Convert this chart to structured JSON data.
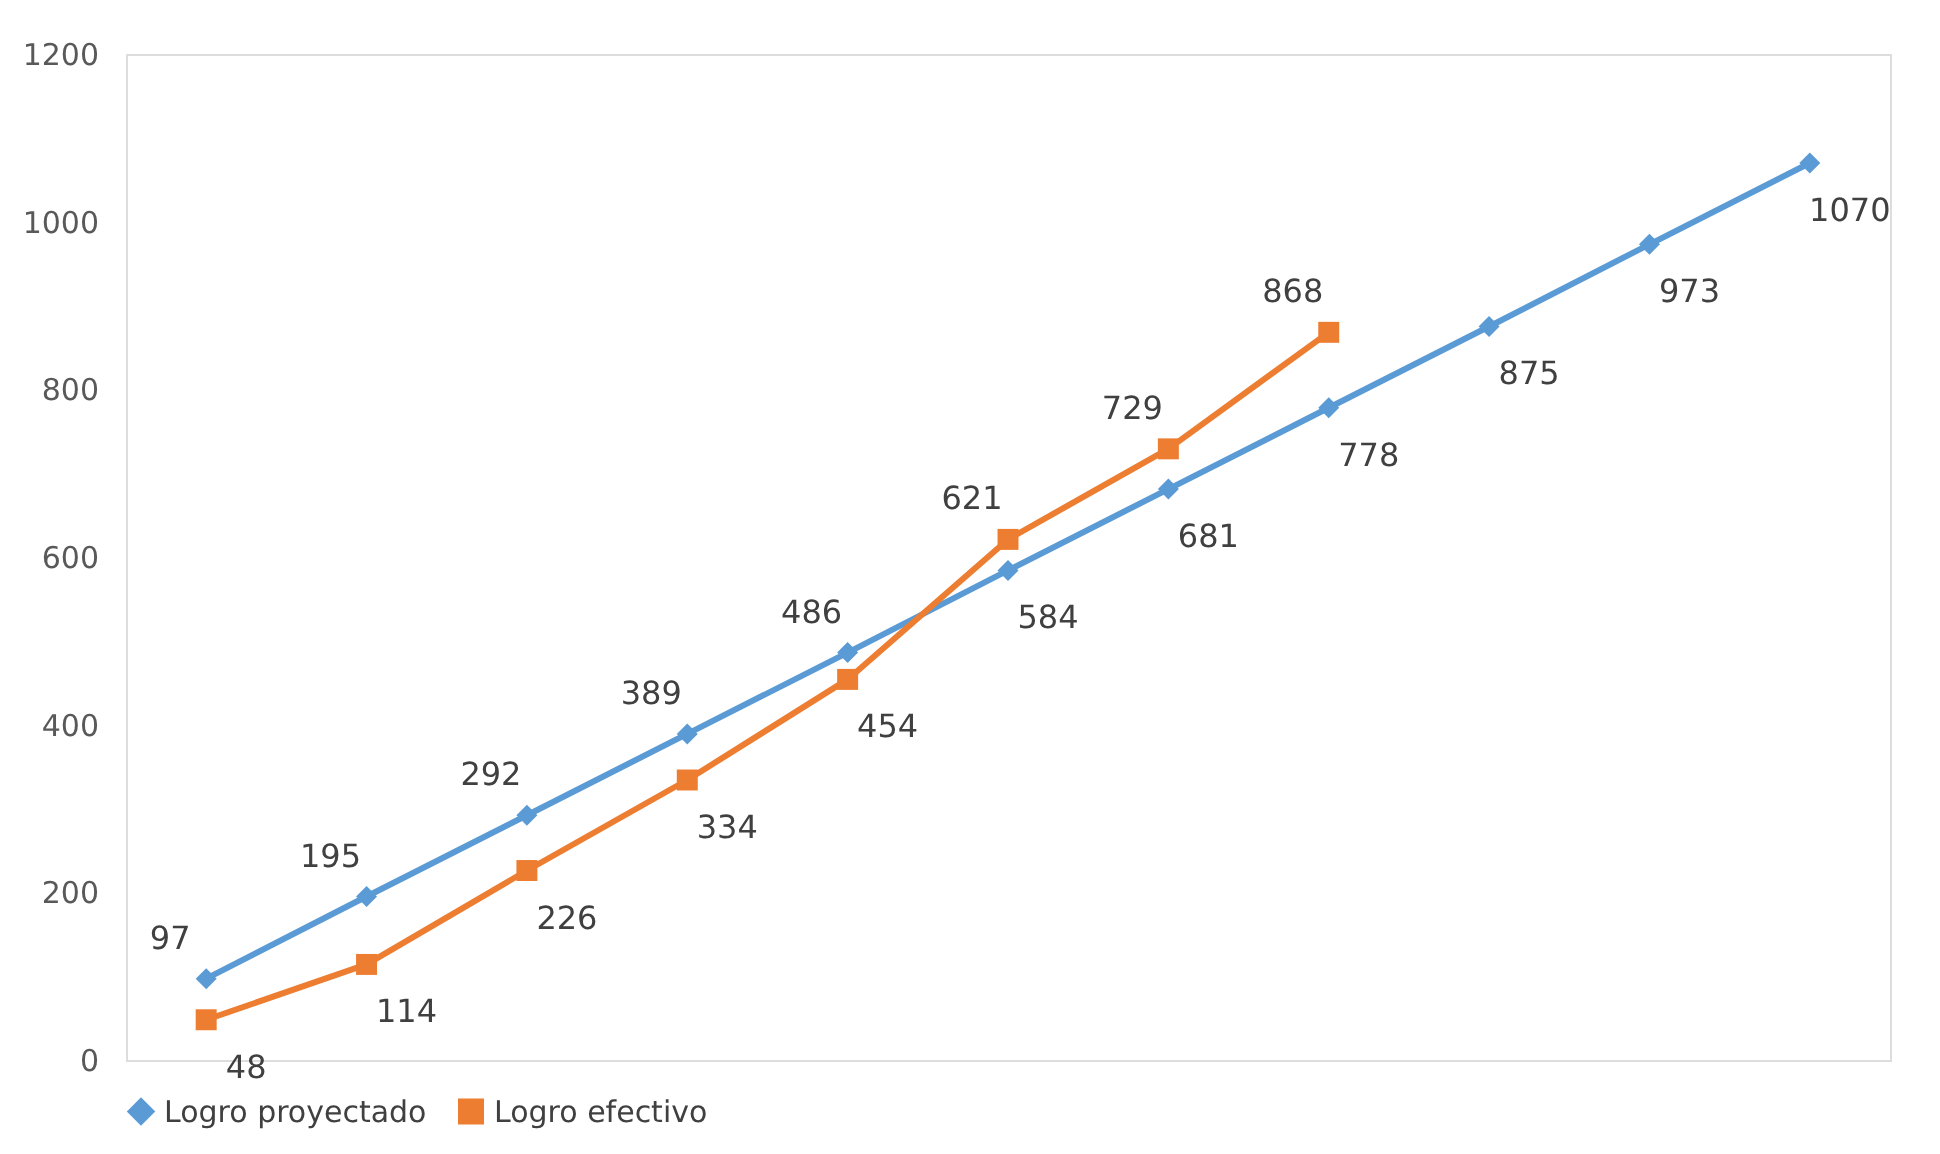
{
  "chart_data": {
    "type": "line",
    "categories": [
      null,
      null,
      null,
      null,
      null,
      null,
      null,
      null,
      null,
      null,
      null
    ],
    "series": [
      {
        "name": "Logro proyectado",
        "color": "#5b9bd5",
        "marker": "diamond",
        "values": [
          97,
          195,
          292,
          389,
          486,
          584,
          681,
          778,
          875,
          973,
          1070
        ]
      },
      {
        "name": "Logro efectivo",
        "color": "#ed7d31",
        "marker": "square",
        "values": [
          48,
          114,
          226,
          334,
          454,
          621,
          729,
          868,
          null,
          null,
          null
        ]
      }
    ],
    "ylim": [
      0,
      1200
    ],
    "yticks": [
      0,
      200,
      400,
      600,
      800,
      1000,
      1200
    ],
    "grid": false,
    "legend": "bottom",
    "data_labels": true
  }
}
